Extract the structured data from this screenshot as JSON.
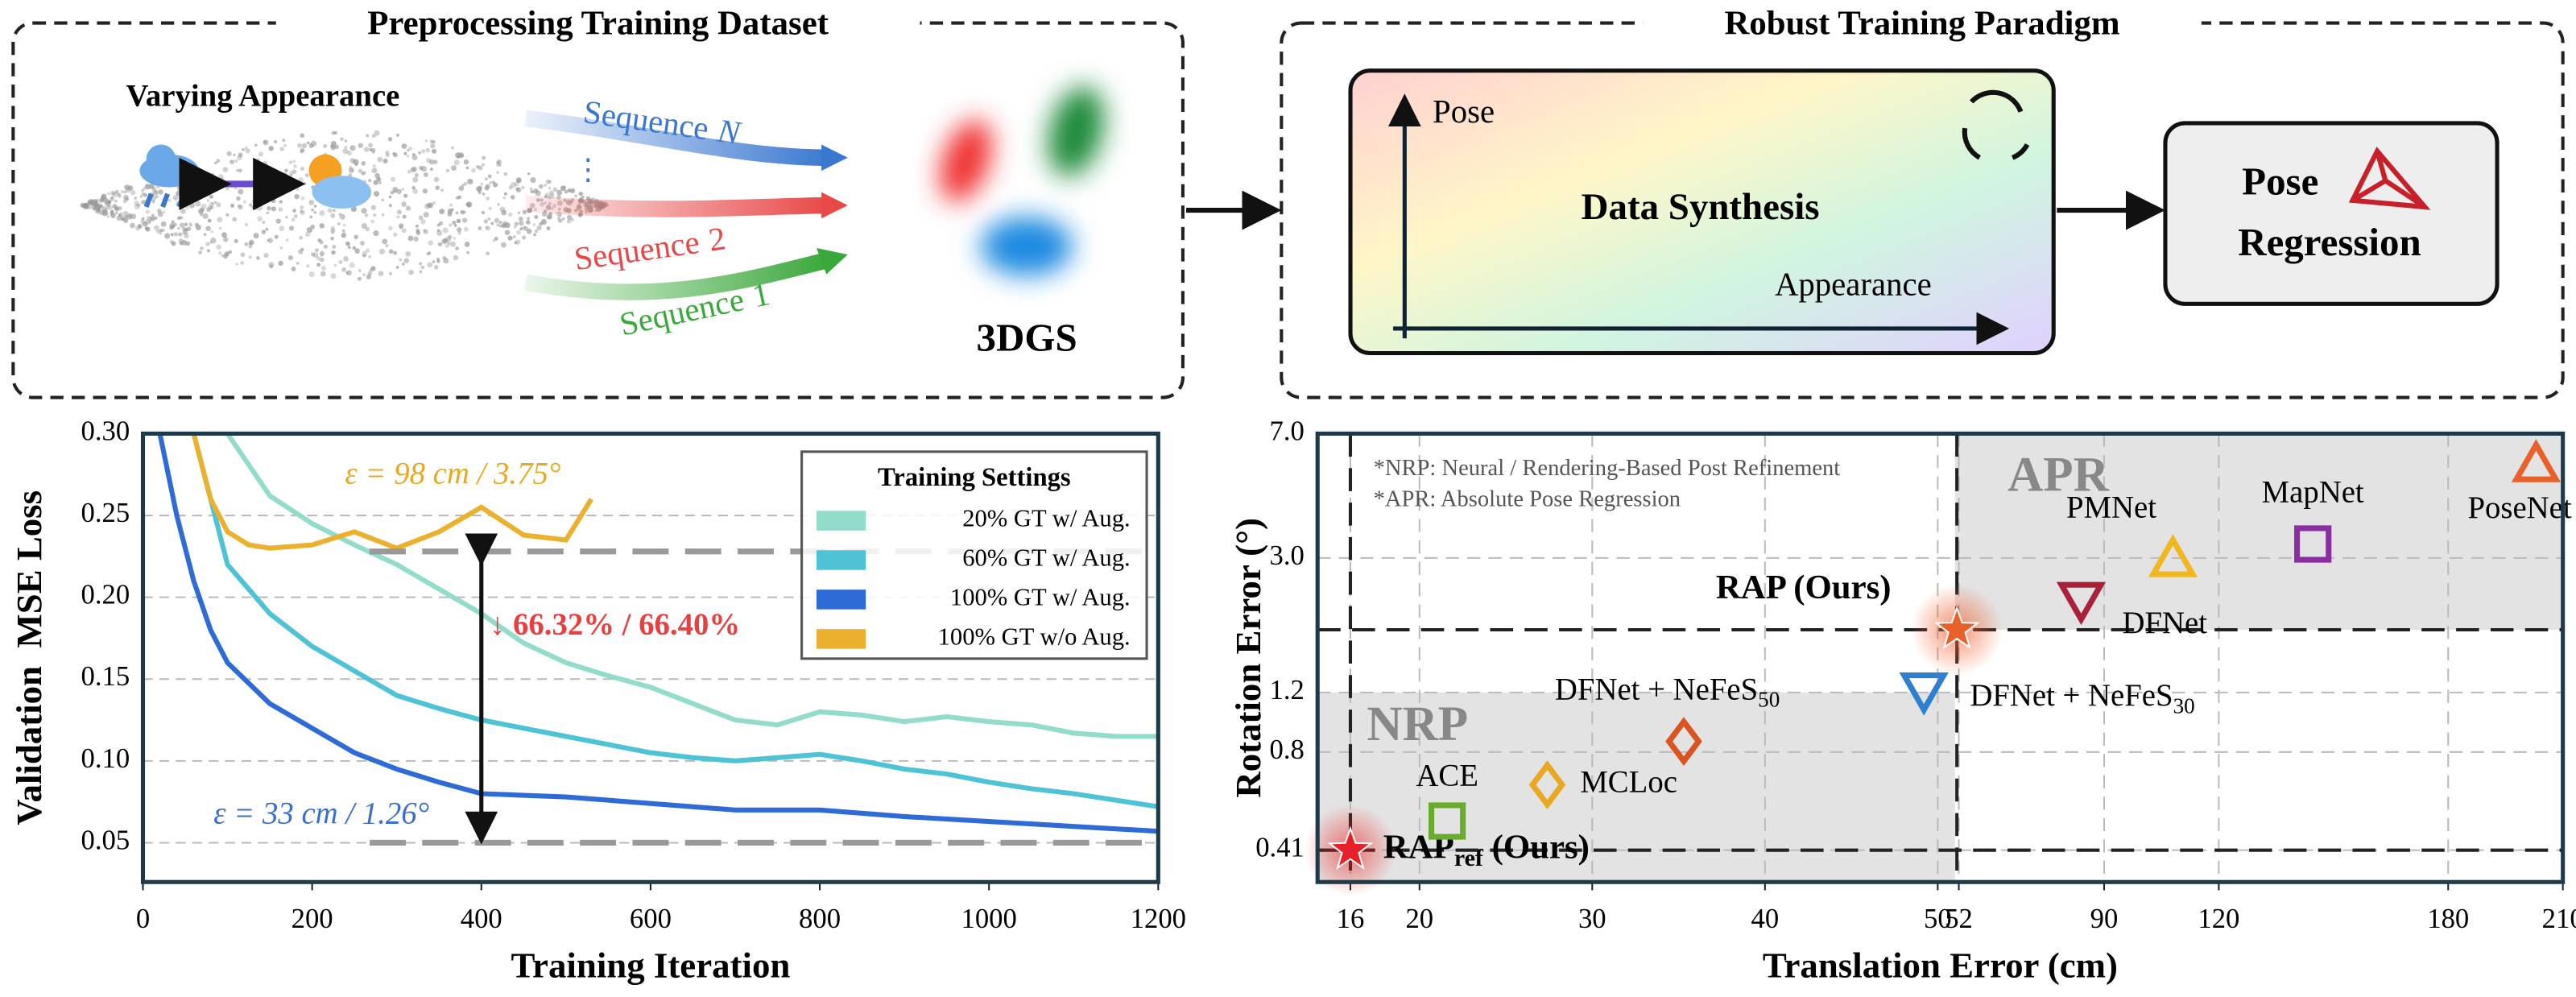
{
  "diagram": {
    "left_title": "Preprocessing Training Dataset",
    "varying_appearance": "Varying Appearance",
    "sequences": [
      {
        "label": "Sequence",
        "index": "N",
        "color": "#3a78d0"
      },
      {
        "label": "Sequence",
        "index": "2",
        "color": "#e84848"
      },
      {
        "label": "Sequence",
        "index": "1",
        "color": "#3aa83a"
      }
    ],
    "gs_label": "3DGS",
    "right_title": "Robust Training Paradigm",
    "pose_axis": "Pose",
    "synthesis": "Data Synthesis",
    "appearance_axis": "Appearance",
    "pose_regression": [
      "Pose",
      "Regression"
    ]
  },
  "chart_data": [
    {
      "type": "line",
      "xlabel": "Training Iteration",
      "ylabel": "Validation  MSE Loss",
      "xlim": [
        0,
        1200
      ],
      "xticks": [
        0,
        200,
        400,
        600,
        800,
        1000,
        1200
      ],
      "ylim": [
        0.026,
        0.3
      ],
      "yticks": [
        0.05,
        {
          "value": 0.1,
          "label": "0.10"
        },
        0.15,
        {
          "value": 0.2,
          "label": "0.20"
        },
        0.25,
        {
          "value": 0.3,
          "label": "0.30"
        }
      ],
      "grid": true,
      "legend_title": "Training Settings",
      "legend": "upper right",
      "series": [
        {
          "name": "20% GT  w/  Aug.",
          "color": "#93dccb",
          "x": [
            100,
            150,
            200,
            250,
            300,
            350,
            400,
            450,
            500,
            550,
            600,
            650,
            700,
            750,
            800,
            850,
            900,
            950,
            1000,
            1050,
            1100,
            1150,
            1200
          ],
          "values": [
            0.3,
            0.262,
            0.245,
            0.232,
            0.22,
            0.205,
            0.19,
            0.172,
            0.16,
            0.152,
            0.145,
            0.135,
            0.125,
            0.122,
            0.13,
            0.128,
            0.124,
            0.127,
            0.124,
            0.122,
            0.117,
            0.115,
            0.115
          ]
        },
        {
          "name": "60% GT  w/  Aug.",
          "color": "#4fc3d6",
          "x": [
            60,
            80,
            100,
            150,
            200,
            250,
            300,
            350,
            400,
            450,
            500,
            550,
            600,
            650,
            700,
            750,
            800,
            850,
            900,
            950,
            1000,
            1050,
            1100,
            1150,
            1200
          ],
          "values": [
            0.3,
            0.26,
            0.22,
            0.19,
            0.17,
            0.155,
            0.14,
            0.132,
            0.125,
            0.12,
            0.115,
            0.11,
            0.105,
            0.102,
            0.1,
            0.102,
            0.104,
            0.1,
            0.095,
            0.092,
            0.087,
            0.083,
            0.08,
            0.076,
            0.072
          ]
        },
        {
          "name": "100% GT  w/  Aug.",
          "color": "#2f6bd6",
          "x": [
            20,
            40,
            60,
            80,
            100,
            150,
            200,
            250,
            300,
            350,
            400,
            450,
            500,
            600,
            700,
            800,
            900,
            1000,
            1100,
            1200
          ],
          "values": [
            0.3,
            0.25,
            0.21,
            0.18,
            0.16,
            0.135,
            0.12,
            0.105,
            0.095,
            0.087,
            0.08,
            0.079,
            0.078,
            0.074,
            0.07,
            0.07,
            0.066,
            0.063,
            0.06,
            0.057
          ]
        },
        {
          "name": "100% GT w/o Aug.",
          "color": "#ebb02e",
          "x": [
            60,
            80,
            100,
            125,
            150,
            200,
            250,
            300,
            350,
            400,
            450,
            500,
            530
          ],
          "values": [
            0.3,
            0.26,
            0.24,
            0.232,
            0.23,
            0.232,
            0.24,
            0.23,
            0.24,
            0.255,
            0.238,
            0.235,
            0.26
          ]
        }
      ],
      "reference_lines": [
        0.228,
        0.05
      ],
      "annotations": [
        {
          "text": "ε = 98 cm / 3.75°",
          "color": "#e8a820"
        },
        {
          "text": "↓ 66.32% / 66.40%",
          "color": "#e84040"
        },
        {
          "text": "ε = 33 cm / 1.26°",
          "color": "#3a6fd0"
        }
      ]
    },
    {
      "type": "scatter",
      "xlabel": "Translation Error (cm)",
      "ylabel": "Rotation Error (°)",
      "xlim": [
        14.1,
        210
      ],
      "xbreak": 51,
      "xticks": [
        16,
        20,
        30,
        40,
        50,
        52,
        90,
        120,
        180,
        210
      ],
      "ylim": [
        0.33,
        7.0
      ],
      "yscale": "log",
      "yticks": [
        0.41,
        0.8,
        1.2,
        {
          "value": 3,
          "label": "3.0"
        },
        {
          "value": 7,
          "label": "7.0"
        }
      ],
      "grid": true,
      "notes": [
        "*NRP: Neural / Rendering-Based Post Refinement",
        "*APR: Absolute Pose Regression"
      ],
      "regions": [
        {
          "label": "NRP",
          "x": [
            14.1,
            51
          ],
          "y": [
            0.33,
            1.2
          ]
        },
        {
          "label": "APR",
          "x": [
            51,
            210
          ],
          "y": [
            1.84,
            7.0
          ]
        }
      ],
      "ref_x": [
        16,
        51.5
      ],
      "ref_y": [
        0.41,
        1.84
      ],
      "points": [
        {
          "label": "RAP",
          "sub": "ref",
          "after": " (Ours)",
          "x": 16,
          "y": 0.41,
          "marker": "star",
          "color": "#e8202a"
        },
        {
          "label": "ACE",
          "x": 21.6,
          "y": 0.5,
          "marker": "square",
          "color": "#6aab2e"
        },
        {
          "label": "MCLoc",
          "x": 27.4,
          "y": 0.64,
          "marker": "diamond",
          "color": "#e8a820"
        },
        {
          "label": "DFNet + NeFeS",
          "sub": "50",
          "x": 35.3,
          "y": 0.86,
          "marker": "diamond",
          "color": "#d9541e"
        },
        {
          "label": "DFNet + NeFeS",
          "sub": "30",
          "x": 49.2,
          "y": 1.22,
          "marker": "tri-down",
          "color": "#2f7fd0"
        },
        {
          "label": "RAP (Ours)",
          "x": 51.5,
          "y": 1.84,
          "marker": "star",
          "color": "#e8602a"
        },
        {
          "label": "DFNet",
          "x": 84,
          "y": 2.26,
          "marker": "tri-down",
          "color": "#a8203a"
        },
        {
          "label": "PMNet",
          "x": 108,
          "y": 2.97,
          "marker": "tri-up",
          "color": "#f0b820"
        },
        {
          "label": "MapNet",
          "x": 144.6,
          "y": 3.3,
          "marker": "square",
          "color": "#8a2fa0"
        },
        {
          "label": "PoseNet",
          "x": 203,
          "y": 5.67,
          "marker": "tri-up",
          "color": "#e8602a"
        }
      ]
    }
  ]
}
